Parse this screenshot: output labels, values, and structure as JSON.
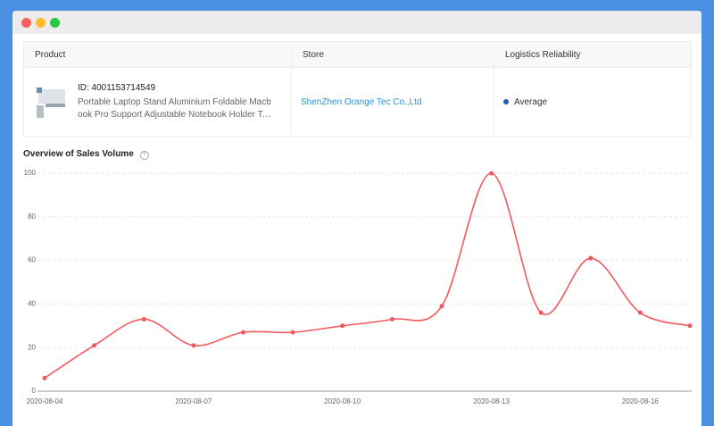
{
  "table": {
    "headers": [
      "Product",
      "Store",
      "Logistics Reliability"
    ],
    "rows": [
      {
        "id": "ID: 4001153714549",
        "name": "Portable Laptop Stand Aluminium Foldable Macbook Pro Support Adjustable Notebook Holder Tablet Base F",
        "store": "ShenZhen Orange Tec Co.,Ltd",
        "logistics": "Average"
      }
    ]
  },
  "chart_data": {
    "type": "line",
    "title": "Overview of Sales Volume",
    "categories": [
      "2020-08-04",
      null,
      null,
      "2020-08-07",
      null,
      null,
      "2020-08-10",
      null,
      null,
      "2020-08-13",
      null,
      null,
      "2020-08-16",
      null
    ],
    "series": [
      {
        "name": "Sales Volume",
        "color": "#f05a5f",
        "values": [
          6,
          21,
          33,
          21,
          27,
          27,
          30,
          33,
          39,
          100,
          36,
          61,
          36,
          30
        ]
      }
    ],
    "ylim": [
      0,
      100
    ],
    "yticks": [
      0,
      20,
      40,
      60,
      80,
      100
    ],
    "grid": true,
    "smooth": true
  }
}
